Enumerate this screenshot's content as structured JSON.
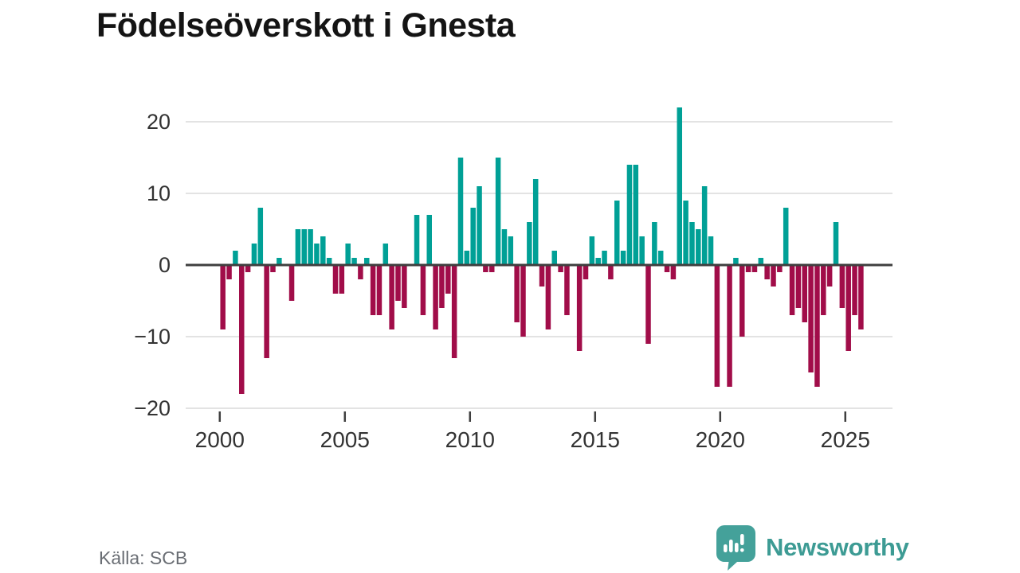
{
  "header": {
    "title": "Födelseöverskott i Gnesta"
  },
  "footer": {
    "source": "Källa: SCB",
    "brand": "Newsworthy"
  },
  "chart_data": {
    "type": "bar",
    "title": "Födelseöverskott i Gnesta",
    "frequency": "quarterly",
    "start": "2000-Q1",
    "end": "2025-Q3",
    "values": [
      -9,
      -2,
      2,
      -18,
      -1,
      3,
      8,
      -13,
      -1,
      1,
      0,
      -5,
      5,
      5,
      5,
      3,
      4,
      1,
      -4,
      -4,
      3,
      1,
      -2,
      1,
      -7,
      -7,
      3,
      -9,
      -5,
      -6,
      0,
      7,
      -7,
      7,
      -9,
      -6,
      -4,
      -13,
      15,
      2,
      8,
      11,
      -1,
      -1,
      15,
      5,
      4,
      -8,
      -10,
      6,
      12,
      -3,
      -9,
      2,
      -1,
      -7,
      0,
      -12,
      -2,
      4,
      1,
      2,
      -2,
      9,
      2,
      14,
      14,
      4,
      -11,
      6,
      2,
      -1,
      -2,
      22,
      9,
      6,
      5,
      11,
      4,
      -17,
      0,
      -17,
      1,
      -10,
      -1,
      -1,
      1,
      -2,
      -3,
      -1,
      8,
      -7,
      -6,
      -8,
      -15,
      -17,
      -7,
      -3,
      6,
      -6,
      -12,
      -7,
      -9
    ],
    "x_axis": {
      "tick_years": [
        2000,
        2005,
        2010,
        2015,
        2020,
        2025
      ],
      "tick_labels": [
        "2000",
        "2005",
        "2010",
        "2015",
        "2020",
        "2025"
      ]
    },
    "y_axis": {
      "tick_values": [
        20,
        10,
        0,
        -10,
        -20
      ],
      "tick_labels": [
        "20",
        "10",
        "0",
        "−10",
        "−20"
      ],
      "range": [
        -20,
        22
      ]
    },
    "grid": "horizontal",
    "legend": "none",
    "colors": {
      "positive": "#00A096",
      "negative": "#A10D49",
      "zero_line": "#3f3f3f",
      "gridline": "#e3e3e3",
      "axis_text": "#333333"
    }
  }
}
